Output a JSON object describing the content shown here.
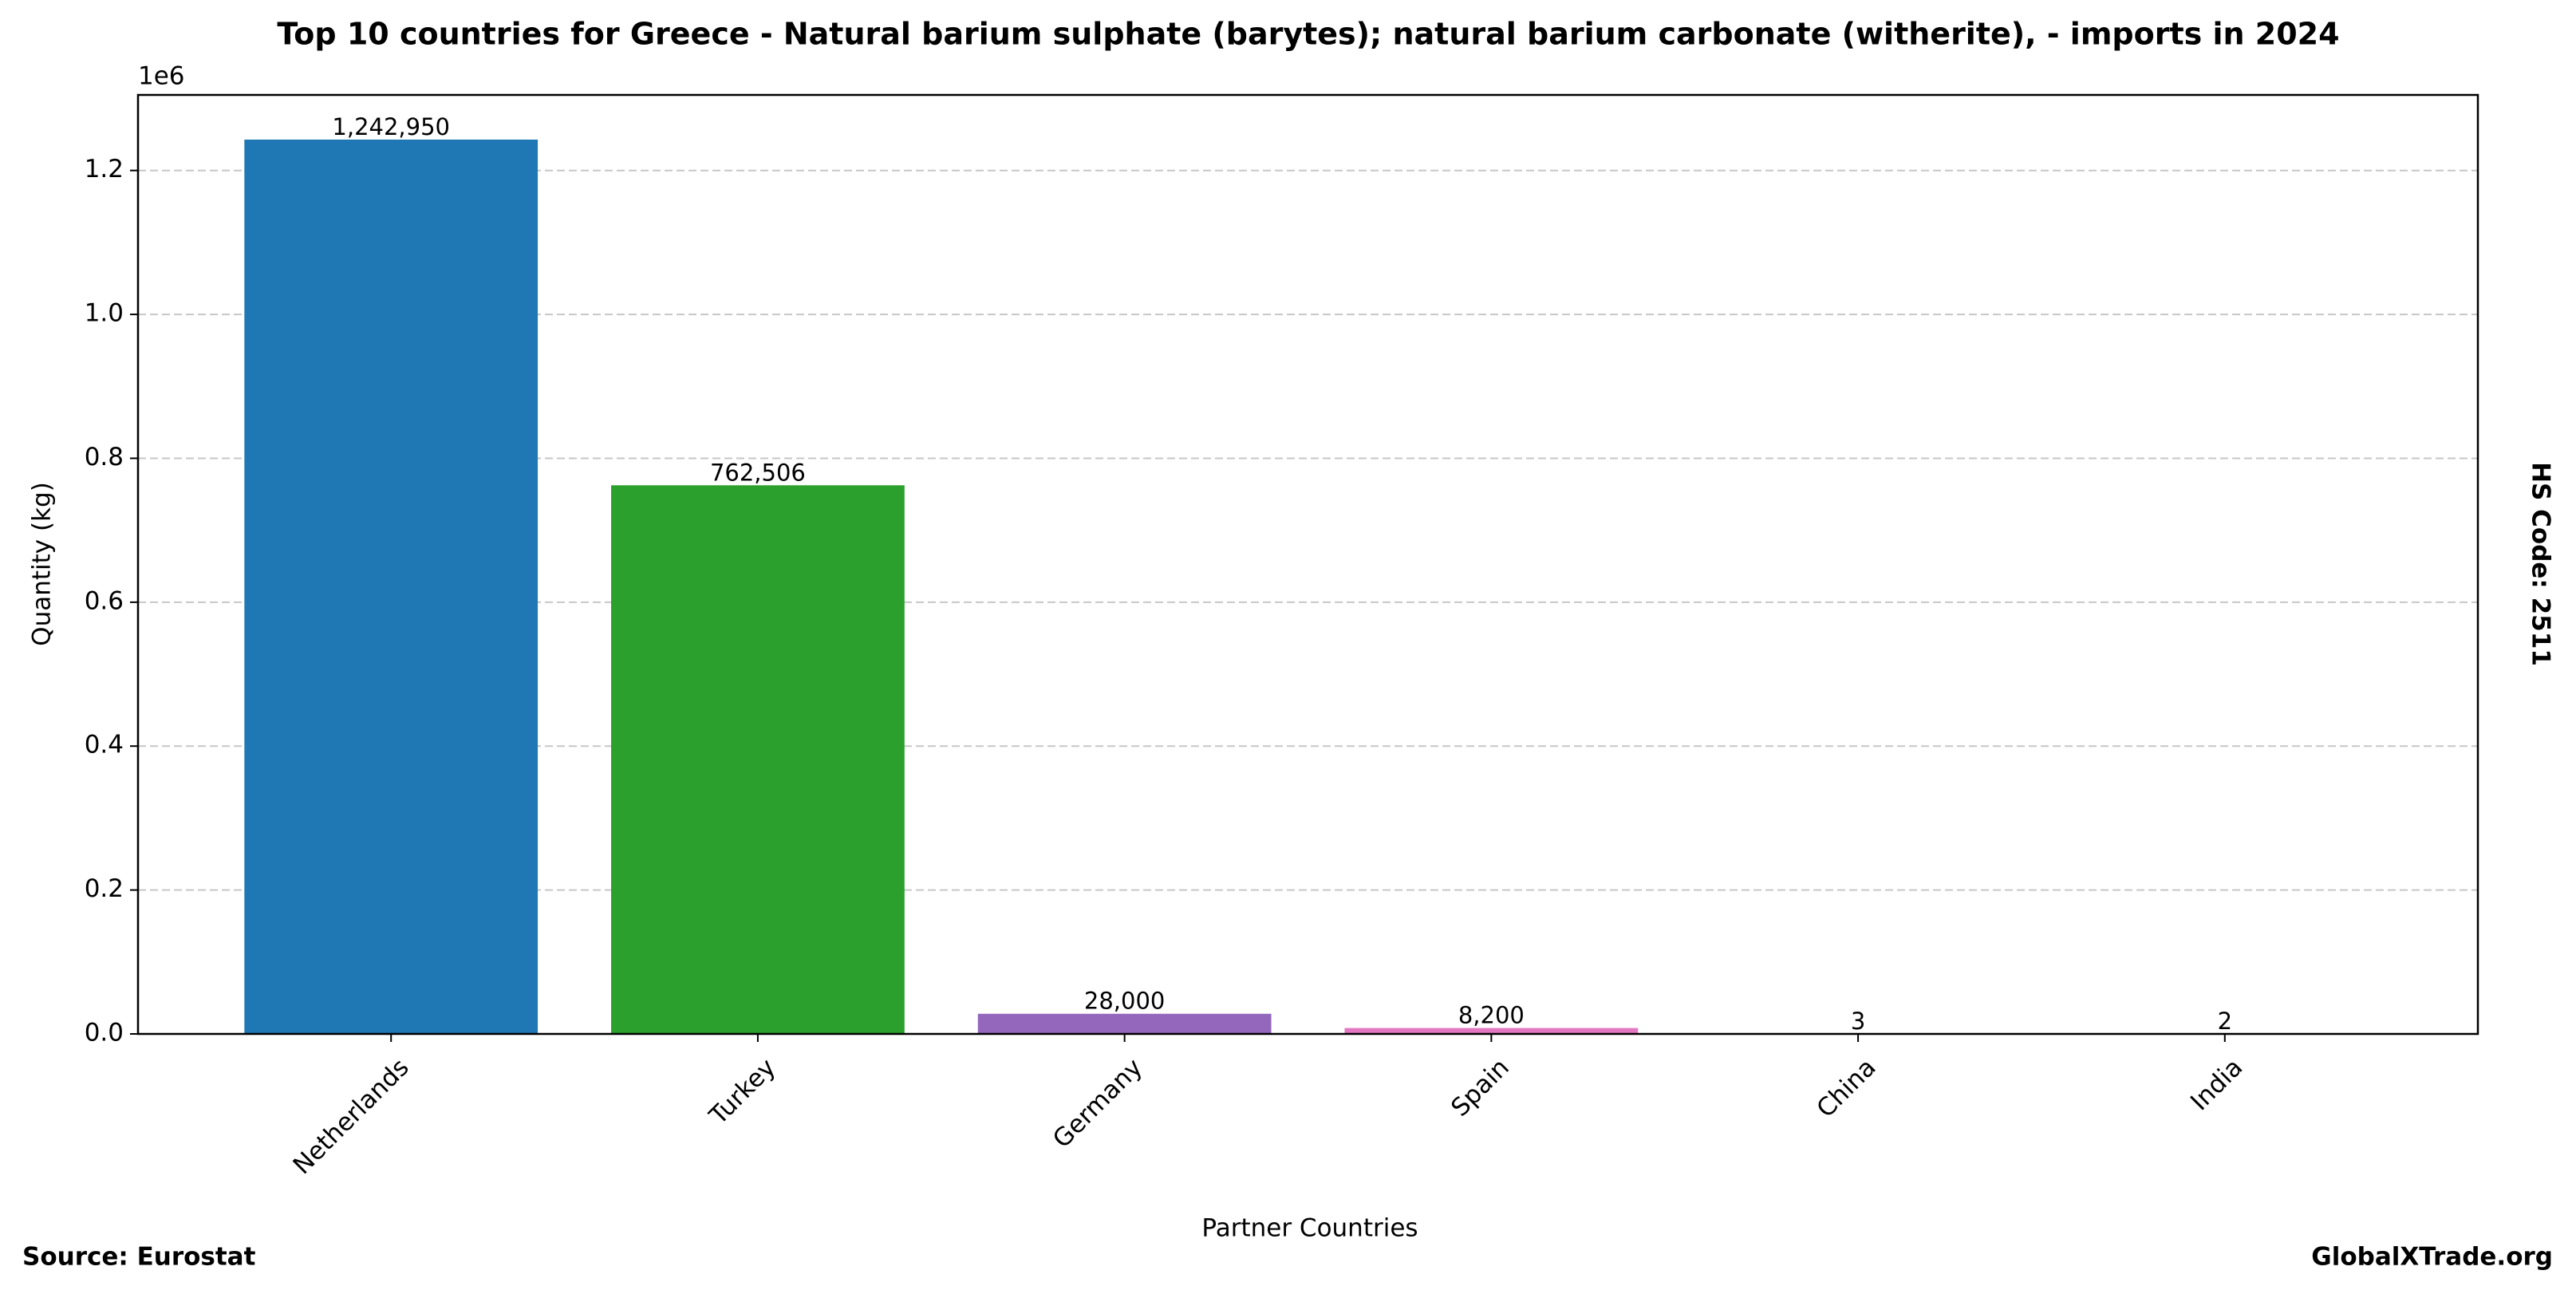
{
  "chart_data": {
    "type": "bar",
    "title": "Top 10 countries for Greece - Natural barium sulphate (barytes); natural barium carbonate (witherite), - imports in 2024",
    "x_label": "Partner Countries",
    "y_label": "Quantity (kg)",
    "y_offset_label": "1e6",
    "side_label": "HS Code: 2511",
    "source": "Source: Eurostat",
    "brand": "GlobalXTrade.org",
    "categories": [
      "Netherlands",
      "Turkey",
      "Germany",
      "Spain",
      "China",
      "India"
    ],
    "values": [
      1242950,
      762506,
      28000,
      8200,
      3,
      2
    ],
    "value_labels": [
      "1,242,950",
      "762,506",
      "28,000",
      "8,200",
      "3",
      "2"
    ],
    "colors": [
      "#1f77b4",
      "#2ca02c",
      "#9467bd",
      "#e377c2",
      "#bcbd22",
      "#17becf"
    ],
    "ylim": [
      0,
      1305000
    ],
    "yticks": [
      {
        "value": 0,
        "label": "0.0"
      },
      {
        "value": 200000,
        "label": "0.2"
      },
      {
        "value": 400000,
        "label": "0.4"
      },
      {
        "value": 600000,
        "label": "0.6"
      },
      {
        "value": 800000,
        "label": "0.8"
      },
      {
        "value": 1000000,
        "label": "1.0"
      },
      {
        "value": 1200000,
        "label": "1.2"
      }
    ],
    "grid": true
  }
}
